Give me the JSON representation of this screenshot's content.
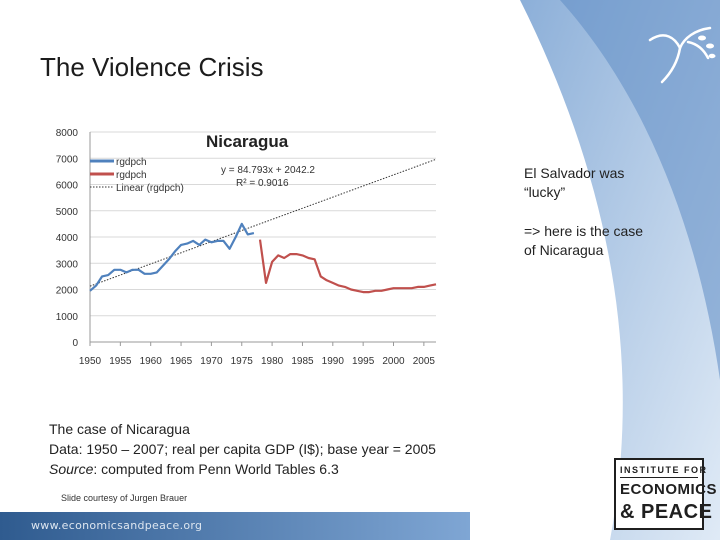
{
  "slide": {
    "title": "The Violence Crisis",
    "side_note_1": "El Salvador was “lucky”",
    "side_note_2": "=> here is the case of Nicaragua",
    "caption_line1": "The case of Nicaragua",
    "caption_line2": "Data: 1950 – 2007; real per capita GDP (I$); base year = 2005",
    "caption_line3_source_word": "Source",
    "caption_line3_rest": ": computed from Penn World Tables 6.3",
    "courtesy": "Slide courtesy of Jurgen Brauer",
    "footer_url": "www.economicsandpeace.org",
    "logo_line1": "INSTITUTE FOR",
    "logo_line2": "ECONOMICS",
    "logo_line3": "& PEACE"
  },
  "colors": {
    "background_gradient_light": "#dce8f5",
    "background_gradient_dark": "#7fa6d4",
    "series_blue": "#4f81bd",
    "series_red": "#c0504d",
    "trend_line": "#333333"
  },
  "chart_data": {
    "type": "line",
    "title": "Nicaragua",
    "xlabel": "",
    "ylabel": "",
    "xlim": [
      1950,
      2007
    ],
    "ylim": [
      0,
      8000
    ],
    "x_ticks": [
      1950,
      1955,
      1960,
      1965,
      1970,
      1975,
      1980,
      1985,
      1990,
      1995,
      2000,
      2005
    ],
    "y_ticks": [
      0,
      1000,
      2000,
      3000,
      4000,
      5000,
      6000,
      7000,
      8000
    ],
    "grid": "horizontal",
    "legend": "top-left",
    "legend_entries": [
      "rgdpch",
      "rgdpch",
      "Linear (rgdpch)"
    ],
    "equation": "y = 84.793x + 2042.2",
    "r_squared": "R² = 0.9016",
    "series": [
      {
        "name": "rgdpch",
        "color": "#4f81bd",
        "x": [
          1950,
          1951,
          1952,
          1953,
          1954,
          1955,
          1956,
          1957,
          1958,
          1959,
          1960,
          1961,
          1962,
          1963,
          1964,
          1965,
          1966,
          1967,
          1968,
          1969,
          1970,
          1971,
          1972,
          1973,
          1974,
          1975,
          1976,
          1977
        ],
        "y": [
          1950,
          2150,
          2500,
          2550,
          2750,
          2750,
          2650,
          2750,
          2750,
          2600,
          2600,
          2650,
          2900,
          3150,
          3450,
          3700,
          3750,
          3850,
          3700,
          3900,
          3800,
          3850,
          3850,
          3550,
          4000,
          4500,
          4100,
          4150
        ]
      },
      {
        "name": "rgdpch",
        "color": "#c0504d",
        "x": [
          1978,
          1979,
          1980,
          1981,
          1982,
          1983,
          1984,
          1985,
          1986,
          1987,
          1988,
          1989,
          1990,
          1991,
          1992,
          1993,
          1994,
          1995,
          1996,
          1997,
          1998,
          1999,
          2000,
          2001,
          2002,
          2003,
          2004,
          2005,
          2006,
          2007
        ],
        "y": [
          3900,
          2250,
          3050,
          3300,
          3200,
          3350,
          3350,
          3300,
          3200,
          3150,
          2500,
          2350,
          2250,
          2150,
          2100,
          2000,
          1950,
          1900,
          1900,
          1950,
          1950,
          2000,
          2050,
          2050,
          2050,
          2050,
          2100,
          2100,
          2150,
          2200
        ]
      }
    ],
    "trendline": {
      "name": "Linear (rgdpch)",
      "slope": 84.793,
      "intercept": 2042.2,
      "x_start": 1950,
      "x_end": 2007
    }
  }
}
